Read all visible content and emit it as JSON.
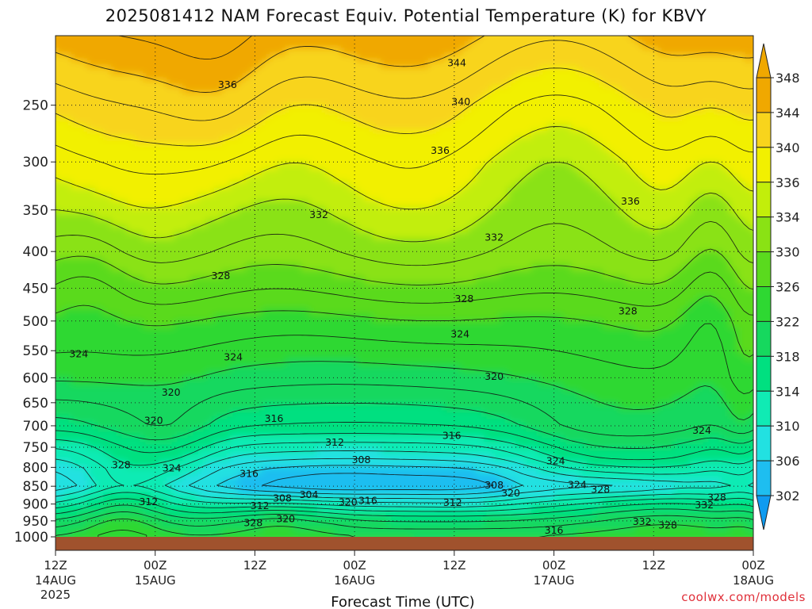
{
  "title": "2025081412 NAM Forecast Equiv. Potential Temperature (K) for KBVY",
  "credit": "coolwx.com/models",
  "chart_data": {
    "type": "heatmap",
    "title": "2025081412 NAM Forecast Equiv. Potential Temperature (K) for KBVY",
    "xlabel": "Forecast Time (UTC)",
    "ylabel": "",
    "x_ticks": [
      {
        "hour": 0,
        "label": "12Z",
        "sub": "14AUG",
        "sub2": "2025"
      },
      {
        "hour": 12,
        "label": "00Z",
        "sub": "15AUG",
        "sub2": ""
      },
      {
        "hour": 24,
        "label": "12Z",
        "sub": "",
        "sub2": ""
      },
      {
        "hour": 36,
        "label": "00Z",
        "sub": "16AUG",
        "sub2": ""
      },
      {
        "hour": 48,
        "label": "12Z",
        "sub": "",
        "sub2": ""
      },
      {
        "hour": 60,
        "label": "00Z",
        "sub": "17AUG",
        "sub2": ""
      },
      {
        "hour": 72,
        "label": "12Z",
        "sub": "",
        "sub2": ""
      },
      {
        "hour": 84,
        "label": "00Z",
        "sub": "18AUG",
        "sub2": ""
      }
    ],
    "xlim_hours": [
      0,
      84
    ],
    "y_ticks": [
      250,
      300,
      350,
      400,
      450,
      500,
      550,
      600,
      650,
      700,
      750,
      800,
      850,
      900,
      950,
      1000
    ],
    "ylim_hpa": [
      200,
      1000
    ],
    "y_scale": "log",
    "grid": "dotted",
    "colorbar": {
      "labels": [
        "348",
        "344",
        "340",
        "336",
        "334",
        "330",
        "326",
        "322",
        "318",
        "314",
        "310",
        "306",
        "302"
      ],
      "levels": [
        302,
        306,
        310,
        314,
        318,
        322,
        326,
        330,
        334,
        336,
        340,
        344,
        348
      ],
      "colors": [
        "#0f9bf0",
        "#1ebef0",
        "#22e1e1",
        "#10ebb4",
        "#00e080",
        "#16d85e",
        "#2ed832",
        "#5ada1e",
        "#8ae214",
        "#c2ee0a",
        "#f2f000",
        "#f8d41c",
        "#f0a800",
        "#f0a800"
      ]
    },
    "ground_color": "#a0522d",
    "contour_labels": [
      {
        "value": "344",
        "hour": 48.3,
        "hpa": 218
      },
      {
        "value": "336",
        "hour": 20.7,
        "hpa": 234
      },
      {
        "value": "340",
        "hour": 48.8,
        "hpa": 247
      },
      {
        "value": "336",
        "hour": 46.3,
        "hpa": 289
      },
      {
        "value": "336",
        "hour": 69.2,
        "hpa": 340
      },
      {
        "value": "332",
        "hour": 31.7,
        "hpa": 355
      },
      {
        "value": "332",
        "hour": 52.8,
        "hpa": 382
      },
      {
        "value": "328",
        "hour": 19.9,
        "hpa": 432
      },
      {
        "value": "328",
        "hour": 49.2,
        "hpa": 465
      },
      {
        "value": "328",
        "hour": 68.9,
        "hpa": 484
      },
      {
        "value": "324",
        "hour": 48.7,
        "hpa": 521
      },
      {
        "value": "324",
        "hour": 2.8,
        "hpa": 555
      },
      {
        "value": "324",
        "hour": 21.4,
        "hpa": 561
      },
      {
        "value": "320",
        "hour": 52.8,
        "hpa": 597
      },
      {
        "value": "320",
        "hour": 13.9,
        "hpa": 628
      },
      {
        "value": "320",
        "hour": 11.8,
        "hpa": 688
      },
      {
        "value": "316",
        "hour": 26.3,
        "hpa": 683
      },
      {
        "value": "316",
        "hour": 47.7,
        "hpa": 722
      },
      {
        "value": "312",
        "hour": 33.6,
        "hpa": 738
      },
      {
        "value": "308",
        "hour": 36.8,
        "hpa": 780
      },
      {
        "value": "328",
        "hour": 7.9,
        "hpa": 793
      },
      {
        "value": "324",
        "hour": 14.0,
        "hpa": 801
      },
      {
        "value": "316",
        "hour": 23.3,
        "hpa": 816
      },
      {
        "value": "324",
        "hour": 60.2,
        "hpa": 783
      },
      {
        "value": "324",
        "hour": 62.8,
        "hpa": 845
      },
      {
        "value": "308",
        "hour": 52.8,
        "hpa": 846
      },
      {
        "value": "328",
        "hour": 65.6,
        "hpa": 858
      },
      {
        "value": "320",
        "hour": 54.8,
        "hpa": 868
      },
      {
        "value": "304",
        "hour": 30.5,
        "hpa": 873
      },
      {
        "value": "308",
        "hour": 27.3,
        "hpa": 883
      },
      {
        "value": "312",
        "hour": 11.2,
        "hpa": 893
      },
      {
        "value": "320",
        "hour": 35.2,
        "hpa": 894
      },
      {
        "value": "316",
        "hour": 37.6,
        "hpa": 889
      },
      {
        "value": "312",
        "hour": 47.8,
        "hpa": 895
      },
      {
        "value": "312",
        "hour": 24.6,
        "hpa": 904
      },
      {
        "value": "328",
        "hour": 79.6,
        "hpa": 880
      },
      {
        "value": "332",
        "hour": 78.1,
        "hpa": 902
      },
      {
        "value": "320",
        "hour": 27.7,
        "hpa": 943
      },
      {
        "value": "328",
        "hour": 23.8,
        "hpa": 955
      },
      {
        "value": "332",
        "hour": 70.6,
        "hpa": 951
      },
      {
        "value": "328",
        "hour": 73.7,
        "hpa": 962
      },
      {
        "value": "316",
        "hour": 60.0,
        "hpa": 979
      },
      {
        "value": "324",
        "hour": 77.8,
        "hpa": 710
      }
    ],
    "field_description_anchor_levels_hpa": [
      200,
      250,
      300,
      400,
      500,
      600,
      700,
      750,
      800,
      850,
      900,
      950,
      1000
    ],
    "field_mean_K": [
      345,
      340.5,
      337,
      332.5,
      326.5,
      322.5,
      317,
      312,
      308,
      306,
      312,
      318,
      322
    ]
  }
}
